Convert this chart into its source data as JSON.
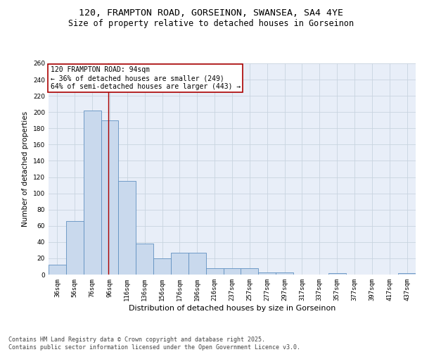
{
  "title_line1": "120, FRAMPTON ROAD, GORSEINON, SWANSEA, SA4 4YE",
  "title_line2": "Size of property relative to detached houses in Gorseinon",
  "categories": [
    "36sqm",
    "56sqm",
    "76sqm",
    "96sqm",
    "116sqm",
    "136sqm",
    "156sqm",
    "176sqm",
    "196sqm",
    "216sqm",
    "237sqm",
    "257sqm",
    "277sqm",
    "297sqm",
    "317sqm",
    "337sqm",
    "357sqm",
    "377sqm",
    "397sqm",
    "417sqm",
    "437sqm"
  ],
  "values": [
    12,
    66,
    202,
    190,
    115,
    38,
    20,
    27,
    27,
    8,
    8,
    8,
    3,
    3,
    0,
    0,
    2,
    0,
    0,
    0,
    2
  ],
  "bar_color": "#c9d9ed",
  "bar_edge_color": "#6090c0",
  "grid_color": "#c8d4e0",
  "background_color": "#e8eef8",
  "vline_color": "#aa0000",
  "vline_x_index": 2.9,
  "annotation_text": "120 FRAMPTON ROAD: 94sqm\n← 36% of detached houses are smaller (249)\n64% of semi-detached houses are larger (443) →",
  "annotation_box_color": "#ffffff",
  "annotation_box_edge": "#aa0000",
  "xlabel": "Distribution of detached houses by size in Gorseinon",
  "ylabel": "Number of detached properties",
  "ylim": [
    0,
    260
  ],
  "yticks": [
    0,
    20,
    40,
    60,
    80,
    100,
    120,
    140,
    160,
    180,
    200,
    220,
    240,
    260
  ],
  "footnote": "Contains HM Land Registry data © Crown copyright and database right 2025.\nContains public sector information licensed under the Open Government Licence v3.0.",
  "title_fontsize": 9.5,
  "subtitle_fontsize": 8.5,
  "tick_fontsize": 6.5,
  "ylabel_fontsize": 7.5,
  "xlabel_fontsize": 8,
  "annotation_fontsize": 7,
  "footnote_fontsize": 6
}
